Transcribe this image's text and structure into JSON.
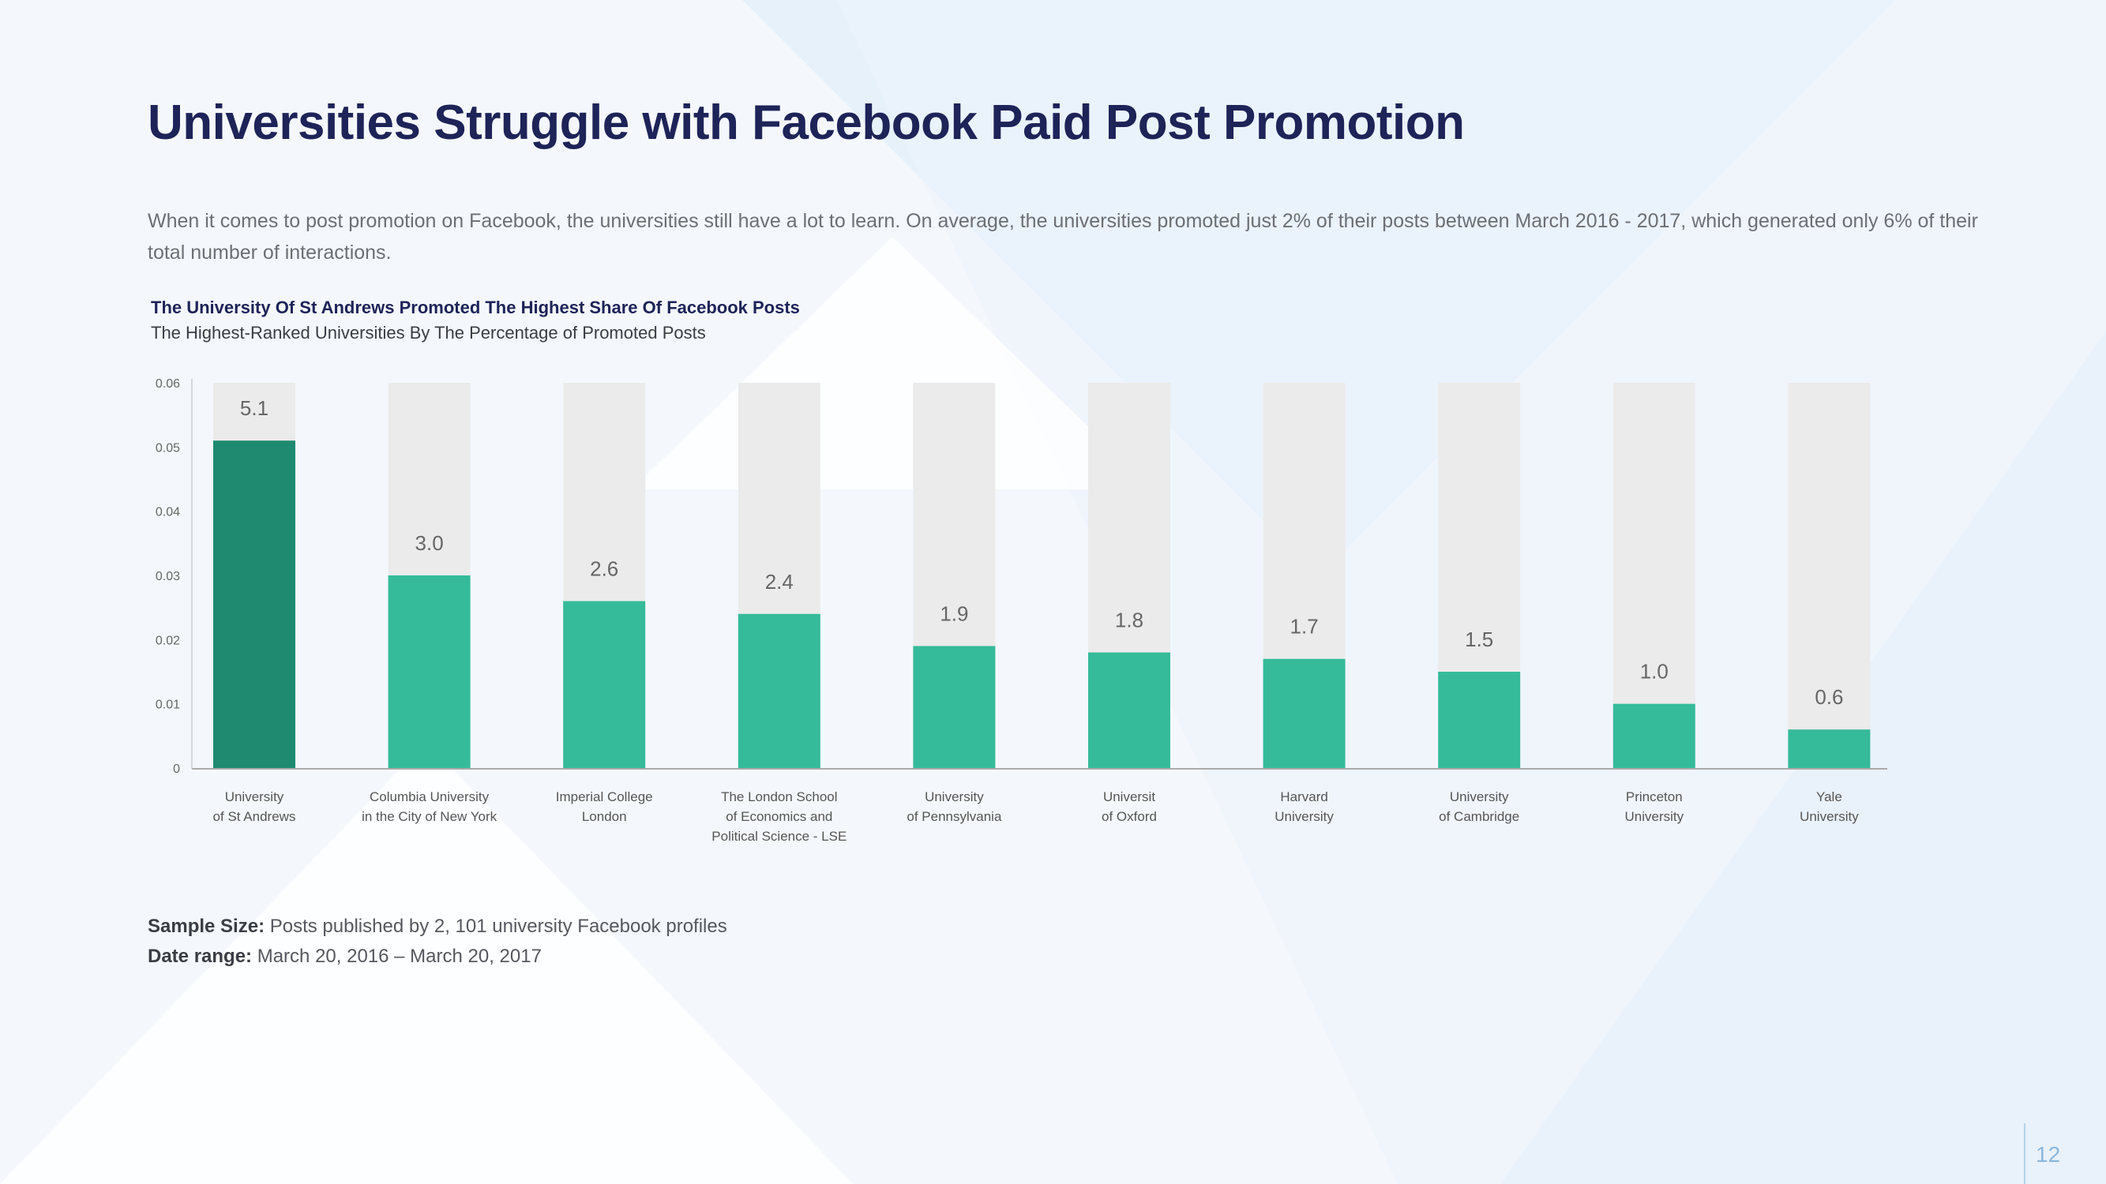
{
  "title": "Universities Struggle with Facebook Paid Post Promotion",
  "intro": "When it comes to post promotion on Facebook, the universities still have a lot to learn. On average, the universities promoted just 2% of their posts between March 2016 - 2017, which generated only 6% of their total number of interactions.",
  "chart_data": {
    "type": "bar",
    "title": "The University Of St Andrews Promoted The Highest Share Of Facebook Posts",
    "subtitle": "The Highest-Ranked Universities By The Percentage of Promoted Posts",
    "xlabel": "",
    "ylabel": "",
    "ylim": [
      0,
      0.06
    ],
    "yticks": [
      0,
      0.01,
      0.02,
      0.03,
      0.04,
      0.05,
      0.06
    ],
    "ytick_labels": [
      "0",
      "0.01",
      "0.02",
      "0.03",
      "0.04",
      "0.05",
      "0.06"
    ],
    "categories": [
      [
        "University",
        "of St Andrews"
      ],
      [
        "Columbia University",
        "in the City of New York"
      ],
      [
        "Imperial College",
        "London"
      ],
      [
        "The London School",
        "of Economics and",
        "Political Science - LSE"
      ],
      [
        "University",
        "of Pennsylvania"
      ],
      [
        "Universit",
        "of Oxford"
      ],
      [
        "Harvard",
        "University"
      ],
      [
        "University",
        "of Cambridge"
      ],
      [
        "Princeton",
        "University"
      ],
      [
        "Yale",
        "University"
      ]
    ],
    "values": [
      0.051,
      0.03,
      0.026,
      0.024,
      0.019,
      0.018,
      0.017,
      0.015,
      0.01,
      0.006
    ],
    "value_labels": [
      "5.1",
      "3.0",
      "2.6",
      "2.4",
      "1.9",
      "1.8",
      "1.7",
      "1.5",
      "1.0",
      "0.6"
    ],
    "colors": {
      "highlight": "#1f8a70",
      "bar": "#35bb9a",
      "track": "#ebebeb",
      "axis": "#aaaaaa"
    }
  },
  "footer": {
    "sample_label": "Sample Size:",
    "sample_value": " Posts published by 2, 101 university Facebook profiles",
    "date_label": "Date range:",
    "date_value": " March 20, 2016 – March 20, 2017"
  },
  "page_number": "12"
}
